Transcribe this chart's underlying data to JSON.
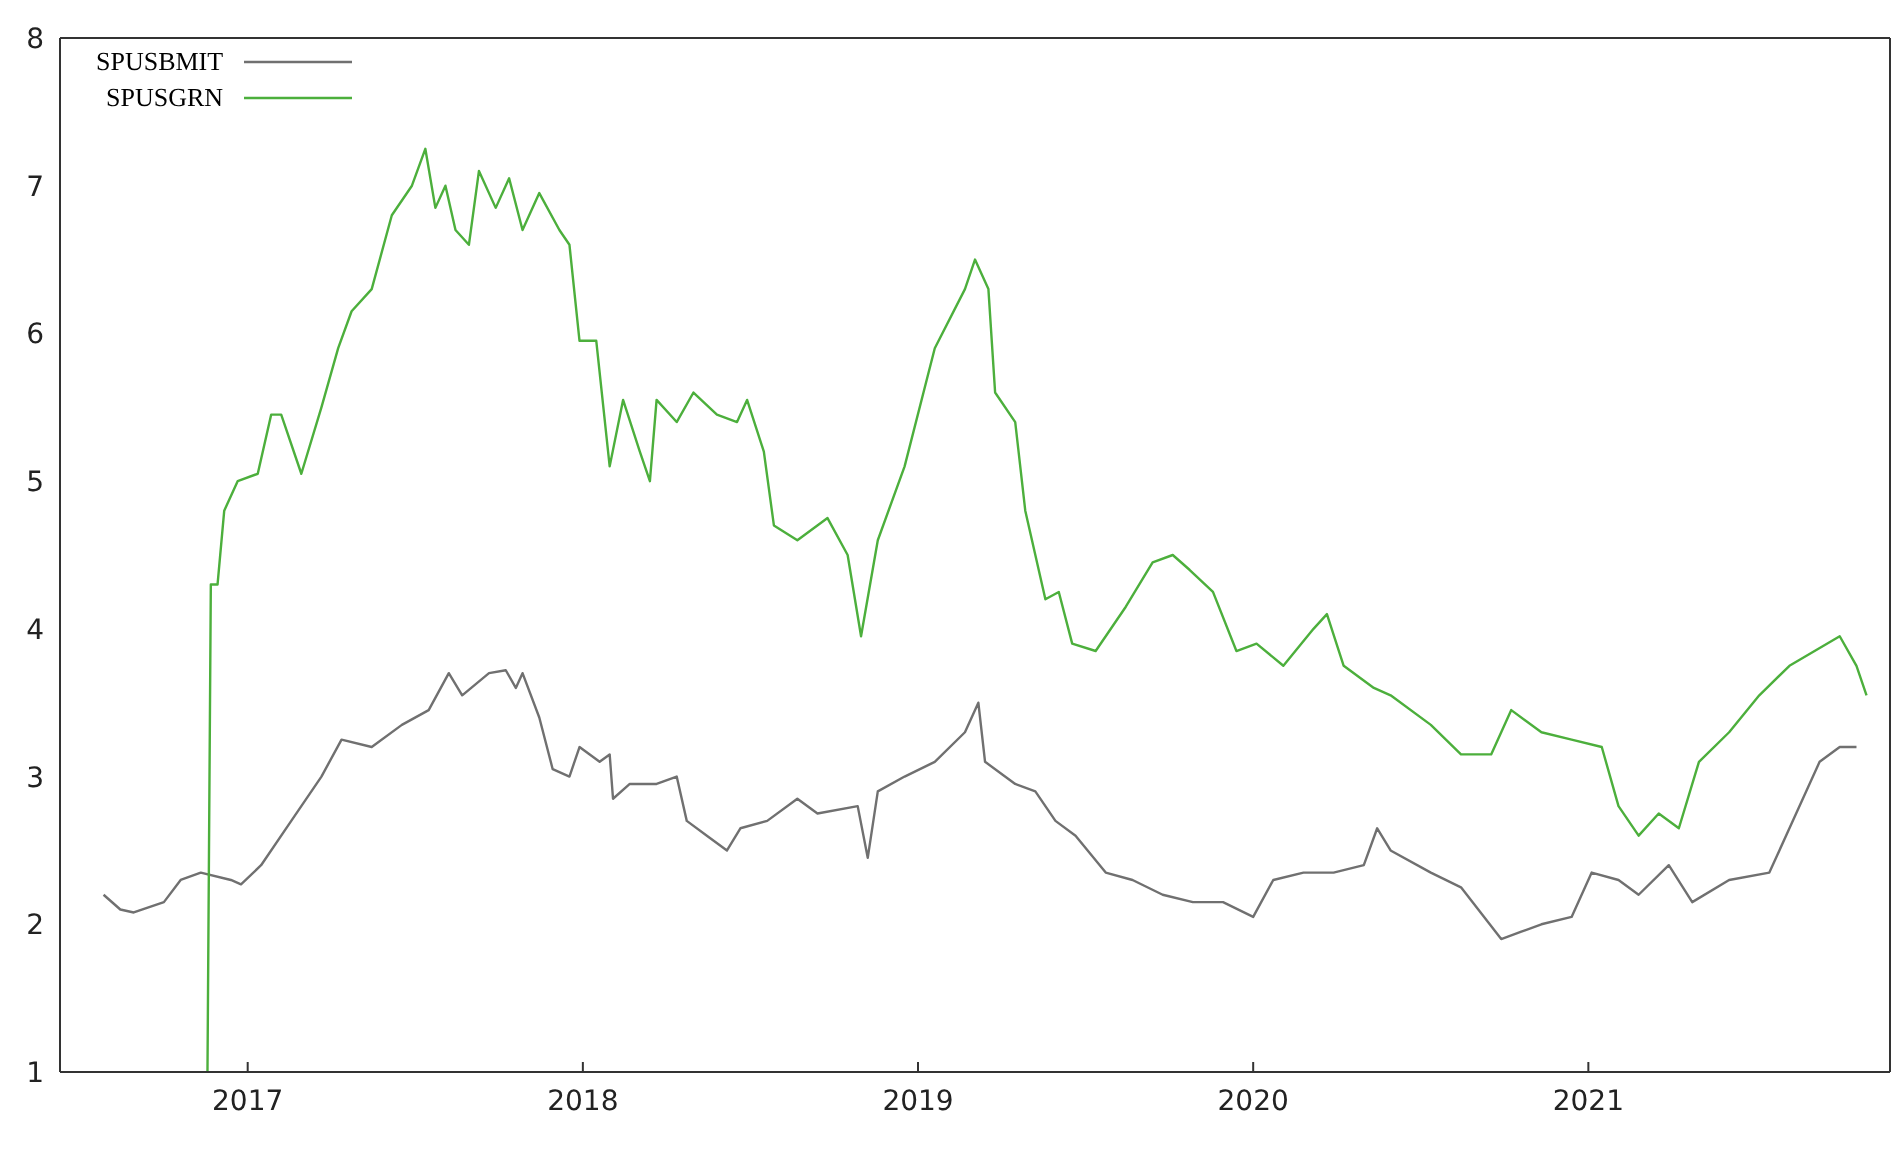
{
  "chart_data": {
    "type": "line",
    "xlim": [
      2016.44,
      2021.9
    ],
    "xticks": [
      2017,
      2018,
      2019,
      2020,
      2021
    ],
    "ylim": [
      1,
      8
    ],
    "yticks": [
      1,
      2,
      3,
      4,
      5,
      6,
      7,
      8
    ],
    "legend": "top left",
    "marker": "none",
    "line_style": "solid",
    "series": [
      {
        "name": "SPUSBMIT",
        "color": "#707070",
        "x": [
          2016.57,
          2016.62,
          2016.66,
          2016.75,
          2016.8,
          2016.86,
          2016.95,
          2016.98,
          2017.04,
          2017.13,
          2017.22,
          2017.28,
          2017.37,
          2017.46,
          2017.54,
          2017.6,
          2017.64,
          2017.72,
          2017.77,
          2017.8,
          2017.82,
          2017.87,
          2017.91,
          2017.96,
          2017.99,
          2018.05,
          2018.08,
          2018.09,
          2018.14,
          2018.22,
          2018.28,
          2018.31,
          2018.37,
          2018.43,
          2018.47,
          2018.55,
          2018.64,
          2018.7,
          2018.82,
          2018.85,
          2018.88,
          2018.96,
          2019.05,
          2019.14,
          2019.18,
          2019.2,
          2019.29,
          2019.35,
          2019.41,
          2019.47,
          2019.56,
          2019.64,
          2019.73,
          2019.82,
          2019.91,
          2020.0,
          2020.06,
          2020.15,
          2020.24,
          2020.33,
          2020.37,
          2020.41,
          2020.53,
          2020.62,
          2020.74,
          2020.8,
          2020.86,
          2020.95,
          2021.01,
          2021.09,
          2021.15,
          2021.24,
          2021.31,
          2021.42,
          2021.54,
          2021.6,
          2021.69,
          2021.75,
          2021.8
        ],
        "values": [
          2.2,
          2.1,
          2.08,
          2.15,
          2.3,
          2.35,
          2.3,
          2.27,
          2.4,
          2.7,
          3.0,
          3.25,
          3.2,
          3.35,
          3.45,
          3.7,
          3.55,
          3.7,
          3.72,
          3.6,
          3.7,
          3.4,
          3.05,
          3.0,
          3.2,
          3.1,
          3.15,
          2.85,
          2.95,
          2.95,
          3.0,
          2.7,
          2.6,
          2.5,
          2.65,
          2.7,
          2.85,
          2.75,
          2.8,
          2.45,
          2.9,
          3.0,
          3.1,
          3.3,
          3.5,
          3.1,
          2.95,
          2.9,
          2.7,
          2.6,
          2.35,
          2.3,
          2.2,
          2.15,
          2.15,
          2.05,
          2.3,
          2.35,
          2.35,
          2.4,
          2.65,
          2.5,
          2.35,
          2.25,
          1.9,
          1.95,
          2.0,
          2.05,
          2.35,
          2.3,
          2.2,
          2.4,
          2.15,
          2.3,
          2.35,
          2.65,
          3.1,
          3.2,
          3.2
        ]
      },
      {
        "name": "SPUSGRN",
        "color": "#4caf3c",
        "x": [
          2016.88,
          2016.89,
          2016.91,
          2016.93,
          2016.97,
          2017.03,
          2017.07,
          2017.1,
          2017.16,
          2017.22,
          2017.27,
          2017.31,
          2017.37,
          2017.43,
          2017.49,
          2017.53,
          2017.56,
          2017.59,
          2017.62,
          2017.66,
          2017.69,
          2017.74,
          2017.78,
          2017.82,
          2017.87,
          2017.93,
          2017.96,
          2017.99,
          2018.04,
          2018.08,
          2018.12,
          2018.17,
          2018.2,
          2018.22,
          2018.28,
          2018.33,
          2018.4,
          2018.46,
          2018.49,
          2018.54,
          2018.57,
          2018.64,
          2018.73,
          2018.79,
          2018.83,
          2018.88,
          2018.96,
          2019.05,
          2019.14,
          2019.17,
          2019.21,
          2019.23,
          2019.29,
          2019.32,
          2019.38,
          2019.42,
          2019.46,
          2019.53,
          2019.62,
          2019.7,
          2019.76,
          2019.81,
          2019.88,
          2019.95,
          2020.01,
          2020.09,
          2020.18,
          2020.22,
          2020.27,
          2020.36,
          2020.41,
          2020.53,
          2020.62,
          2020.71,
          2020.77,
          2020.86,
          2020.95,
          2021.04,
          2021.09,
          2021.15,
          2021.21,
          2021.27,
          2021.33,
          2021.42,
          2021.51,
          2021.6,
          2021.75,
          2021.8,
          2021.83
        ],
        "values": [
          1.0,
          4.3,
          4.3,
          4.8,
          5.0,
          5.05,
          5.45,
          5.45,
          5.05,
          5.5,
          5.9,
          6.15,
          6.3,
          6.8,
          7.0,
          7.25,
          6.85,
          7.0,
          6.7,
          6.6,
          7.1,
          6.85,
          7.05,
          6.7,
          6.95,
          6.7,
          6.6,
          5.95,
          5.95,
          5.1,
          5.55,
          5.2,
          5.0,
          5.55,
          5.4,
          5.6,
          5.45,
          5.4,
          5.55,
          5.2,
          4.7,
          4.6,
          4.75,
          4.5,
          3.95,
          4.6,
          5.1,
          5.9,
          6.3,
          6.5,
          6.3,
          5.6,
          5.4,
          4.8,
          4.2,
          4.25,
          3.9,
          3.85,
          4.15,
          4.45,
          4.5,
          4.4,
          4.25,
          3.85,
          3.9,
          3.75,
          4.0,
          4.1,
          3.75,
          3.6,
          3.55,
          3.35,
          3.15,
          3.15,
          3.45,
          3.3,
          3.25,
          3.2,
          2.8,
          2.6,
          2.75,
          2.65,
          3.1,
          3.3,
          3.55,
          3.75,
          3.95,
          3.75,
          3.55
        ]
      }
    ]
  }
}
